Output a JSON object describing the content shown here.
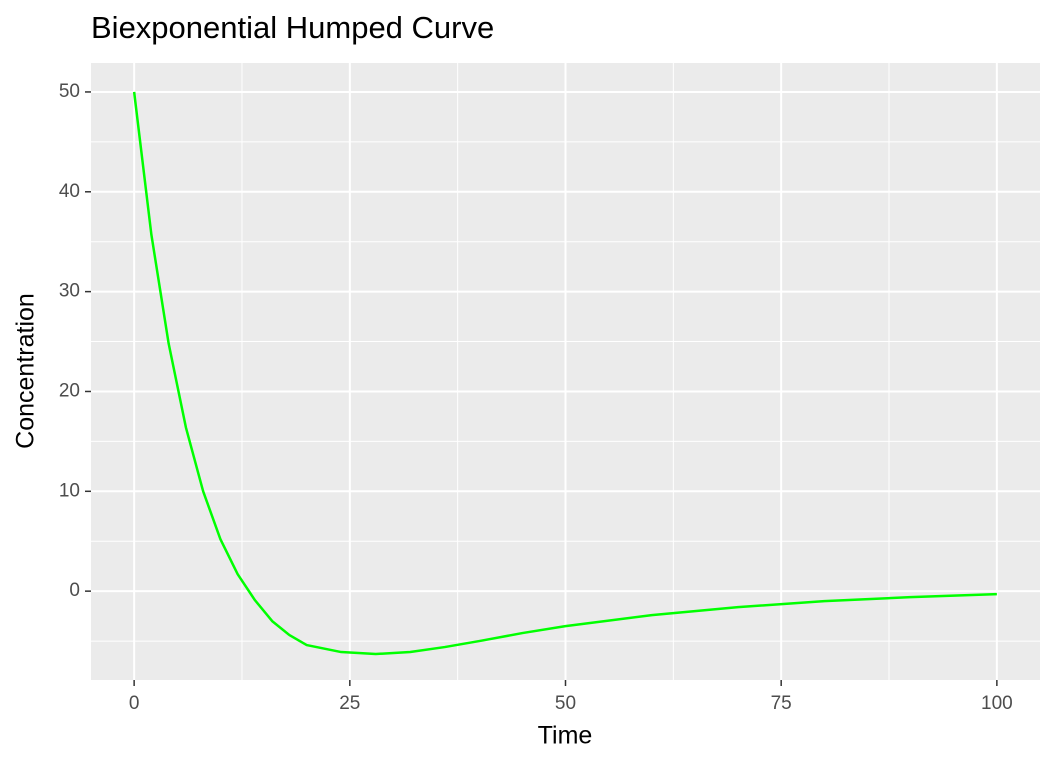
{
  "chart_data": {
    "type": "line",
    "title": "Biexponential Humped Curve",
    "x_label": "Time",
    "y_label": "Concentration",
    "x": [
      0,
      2,
      4,
      6,
      8,
      10,
      12,
      14,
      16,
      18,
      20,
      24,
      28,
      32,
      36,
      40,
      45,
      50,
      60,
      70,
      80,
      90,
      100
    ],
    "series": [
      {
        "name": "Concentration",
        "color": "#00ff00",
        "values": [
          50,
          35.7,
          24.8,
          16.4,
          10.0,
          5.2,
          1.7,
          -0.9,
          -3.0,
          -4.4,
          -5.4,
          -6.1,
          -6.3,
          -6.1,
          -5.6,
          -5.0,
          -4.2,
          -3.5,
          -2.4,
          -1.6,
          -1.0,
          -0.6,
          -0.3
        ]
      }
    ],
    "xlim": [
      -5,
      105
    ],
    "ylim": [
      -8.9,
      52.9
    ],
    "xticks": [
      0,
      25,
      50,
      75,
      100
    ],
    "yticks": [
      0,
      10,
      20,
      30,
      40,
      50
    ],
    "xminor": [
      12.5,
      37.5,
      62.5,
      87.5
    ],
    "yminor": [
      -5,
      5,
      15,
      25,
      35,
      45
    ],
    "grid": true
  }
}
